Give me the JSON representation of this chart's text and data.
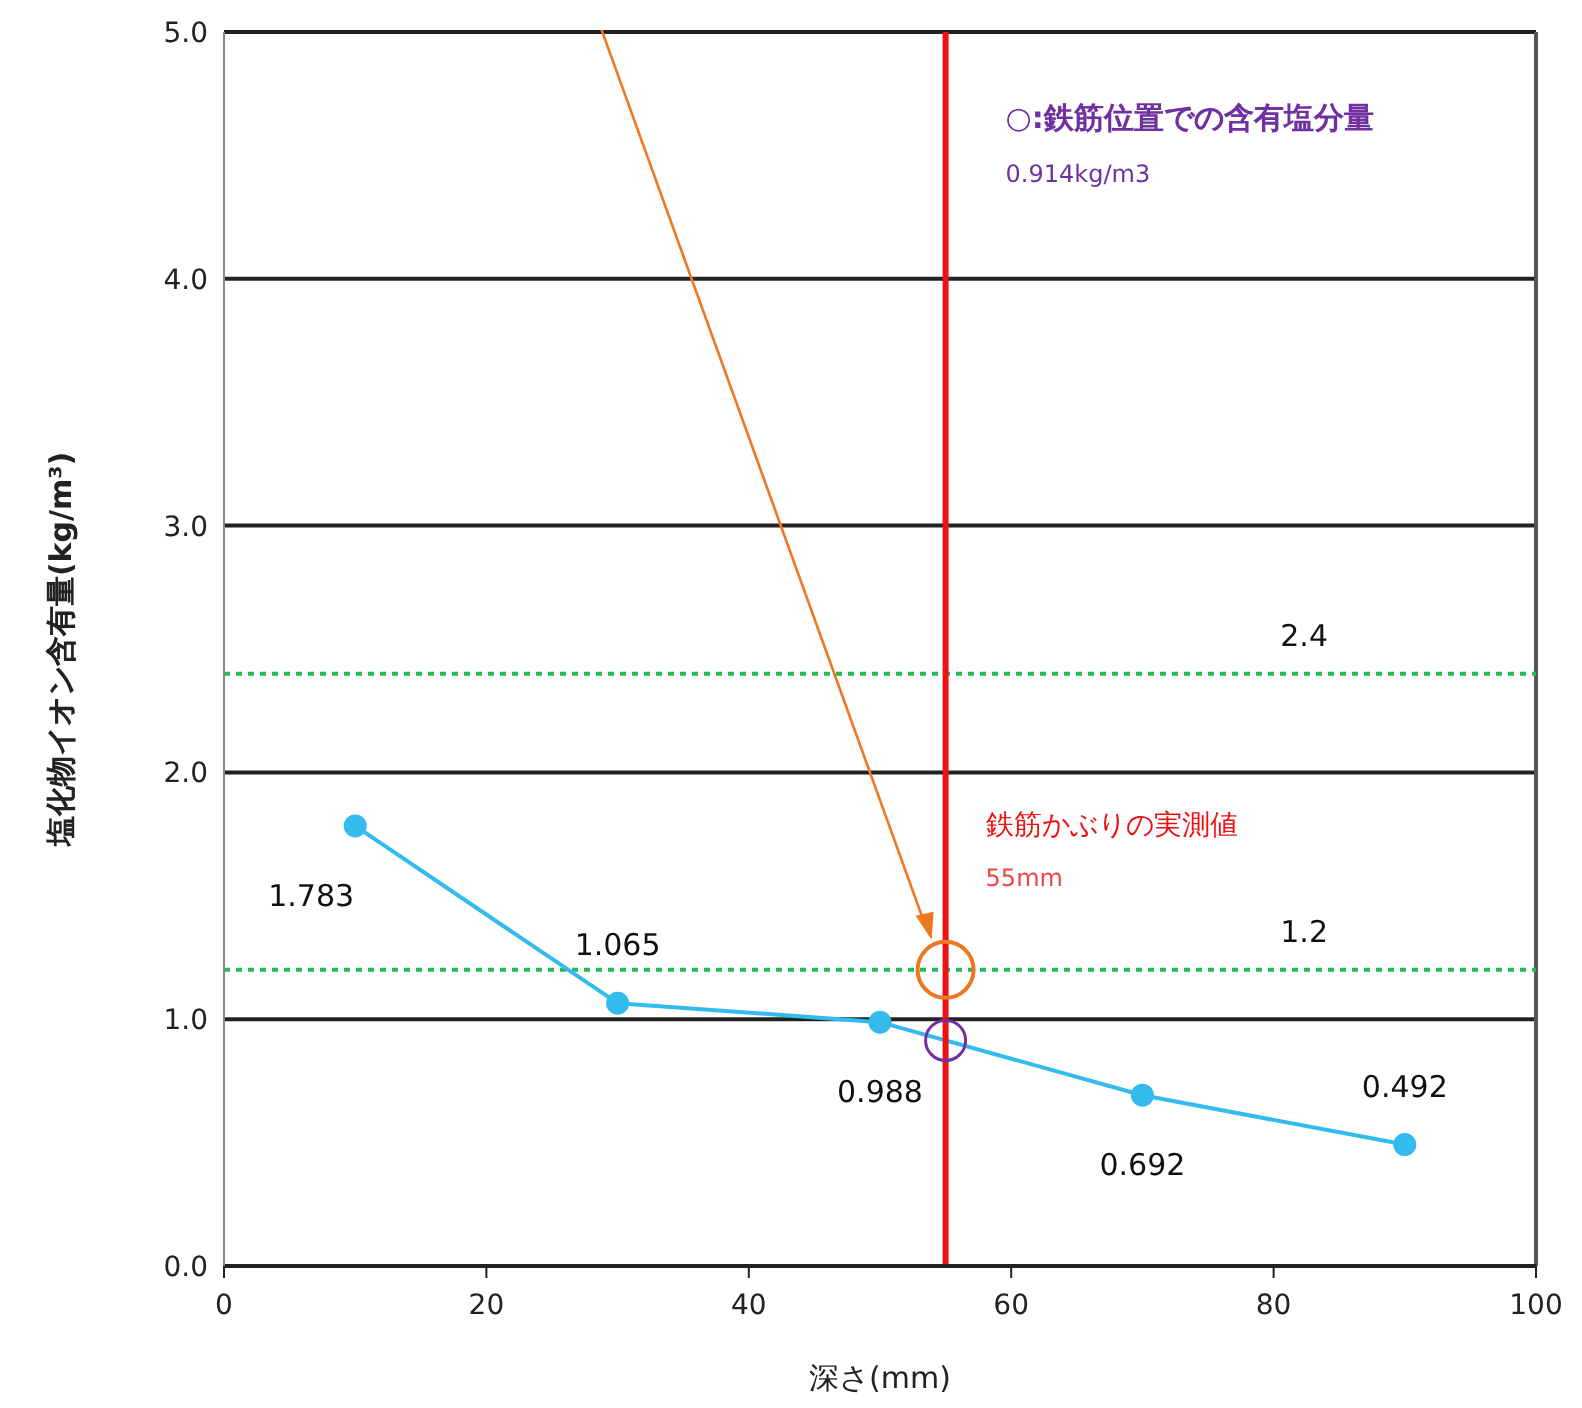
{
  "chart_data": {
    "type": "line",
    "xlabel": "深さ(mm)",
    "ylabel": "塩化物イオン含有量(kg/m³)",
    "x": [
      10,
      30,
      50,
      70,
      90
    ],
    "series": [
      {
        "color": "#33bbee",
        "values": [
          1.783,
          1.065,
          0.988,
          0.692,
          0.492
        ],
        "value_labels": [
          "1.783",
          "1.065",
          "0.988",
          "0.692",
          "0.492"
        ],
        "marker": "circle"
      },
      {
        "type": "scatter",
        "color": "#7030a0",
        "x": [
          55
        ],
        "values": [
          0.914
        ],
        "marker": "circle"
      }
    ],
    "xlim": [
      0,
      100
    ],
    "xticks": [
      0,
      20,
      40,
      60,
      80,
      100
    ],
    "ylim": [
      0,
      5
    ],
    "yticks": [
      {
        "value": 0,
        "label": "0.0"
      },
      {
        "value": 1,
        "label": "1.0"
      },
      {
        "value": 2,
        "label": "2.0"
      },
      {
        "value": 3,
        "label": "3.0"
      },
      {
        "value": 4,
        "label": "4.0"
      },
      {
        "value": 5,
        "label": "5.0"
      }
    ],
    "grid": "y",
    "ref_lines": [
      {
        "axis": "y",
        "value": 2.4,
        "label": "2.4",
        "color": "#22bb55",
        "line_style": "dotted"
      },
      {
        "axis": "y",
        "value": 1.2,
        "label": "1.2",
        "color": "#22bb55",
        "line_style": "dotted"
      },
      {
        "axis": "x",
        "value": 55,
        "color": "#ee1111",
        "line_style": "solid"
      }
    ],
    "annotations": [
      "○:鉄筋位置での含有塩分量",
      "0.914kg/m3",
      "鉄筋かぶりの実測値",
      "55mm"
    ]
  }
}
